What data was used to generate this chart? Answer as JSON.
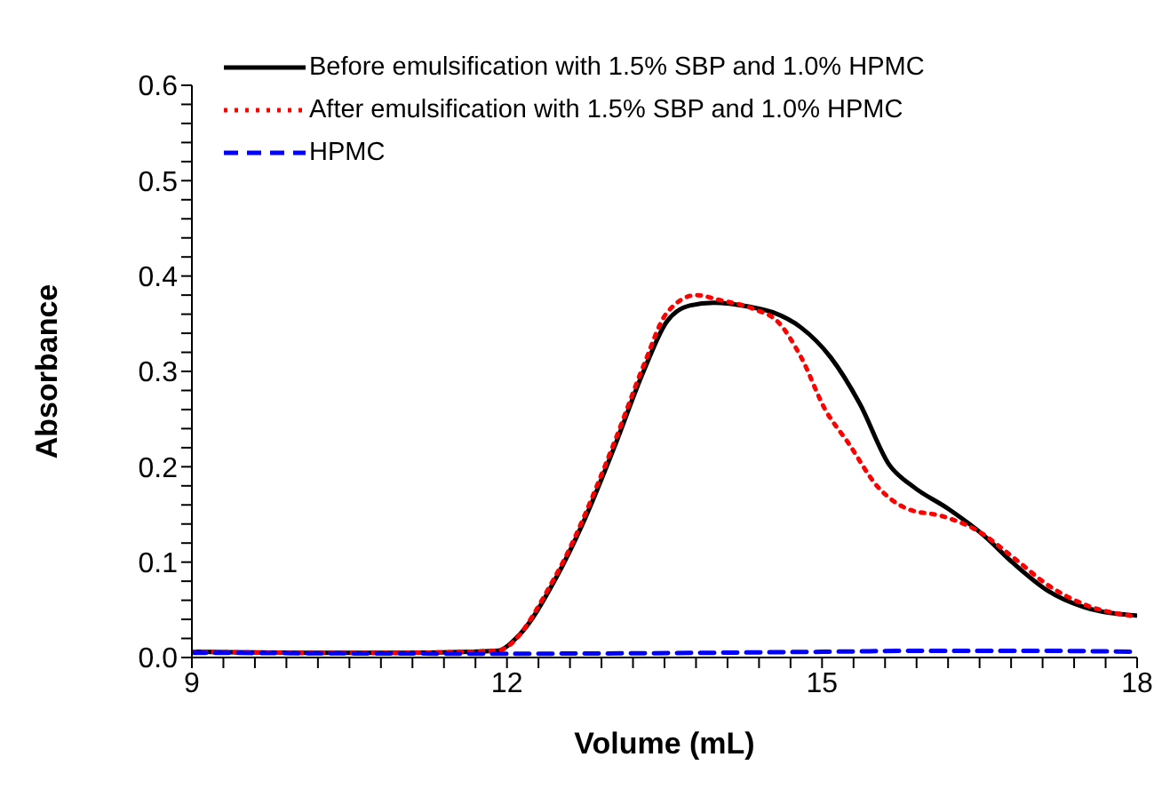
{
  "chart_data": {
    "type": "line",
    "xlabel": "Volume (mL)",
    "ylabel": "Absorbance",
    "xlim": [
      9,
      18
    ],
    "ylim": [
      0,
      0.6
    ],
    "xticks": [
      9,
      {
        "value": 9.3,
        "label": null
      },
      {
        "value": 9.6,
        "label": null
      },
      {
        "value": 9.9,
        "label": null
      },
      {
        "value": 10.2,
        "label": null
      },
      {
        "value": 10.5,
        "label": null
      },
      {
        "value": 10.8,
        "label": null
      },
      {
        "value": 11.1,
        "label": null
      },
      {
        "value": 11.4,
        "label": null
      },
      {
        "value": 11.7,
        "label": null
      },
      12,
      {
        "value": 12.3,
        "label": null
      },
      {
        "value": 12.6,
        "label": null
      },
      {
        "value": 12.9,
        "label": null
      },
      {
        "value": 13.2,
        "label": null
      },
      {
        "value": 13.5,
        "label": null
      },
      {
        "value": 13.8,
        "label": null
      },
      {
        "value": 14.1,
        "label": null
      },
      {
        "value": 14.4,
        "label": null
      },
      {
        "value": 14.7,
        "label": null
      },
      15,
      {
        "value": 15.3,
        "label": null
      },
      {
        "value": 15.6,
        "label": null
      },
      {
        "value": 15.9,
        "label": null
      },
      {
        "value": 16.2,
        "label": null
      },
      {
        "value": 16.5,
        "label": null
      },
      {
        "value": 16.8,
        "label": null
      },
      {
        "value": 17.1,
        "label": null
      },
      {
        "value": 17.4,
        "label": null
      },
      {
        "value": 17.7,
        "label": null
      },
      18
    ],
    "yticks": [
      {
        "value": 0,
        "label": "0.0"
      },
      {
        "value": 0.02,
        "label": null
      },
      {
        "value": 0.04,
        "label": null
      },
      {
        "value": 0.06,
        "label": null
      },
      {
        "value": 0.08,
        "label": null
      },
      0.1,
      {
        "value": 0.12,
        "label": null
      },
      {
        "value": 0.14,
        "label": null
      },
      {
        "value": 0.16,
        "label": null
      },
      {
        "value": 0.18,
        "label": null
      },
      0.2,
      {
        "value": 0.22,
        "label": null
      },
      {
        "value": 0.24,
        "label": null
      },
      {
        "value": 0.26,
        "label": null
      },
      {
        "value": 0.28,
        "label": null
      },
      0.3,
      {
        "value": 0.32,
        "label": null
      },
      {
        "value": 0.34,
        "label": null
      },
      {
        "value": 0.36,
        "label": null
      },
      {
        "value": 0.38,
        "label": null
      },
      0.4,
      {
        "value": 0.42,
        "label": null
      },
      {
        "value": 0.44,
        "label": null
      },
      {
        "value": 0.46,
        "label": null
      },
      {
        "value": 0.48,
        "label": null
      },
      0.5,
      {
        "value": 0.52,
        "label": null
      },
      {
        "value": 0.54,
        "label": null
      },
      {
        "value": 0.56,
        "label": null
      },
      {
        "value": 0.58,
        "label": null
      },
      0.6
    ],
    "grid": false,
    "legend": "top left",
    "marker": "none",
    "series": [
      {
        "name": "Before emulsification with 1.5% SBP and 1.0% HPMC",
        "color": "#000000",
        "line_style": "solid",
        "x": [
          9,
          10,
          11,
          11.9,
          12.12,
          12.46,
          12.74,
          13.02,
          13.3,
          13.52,
          13.74,
          13.97,
          14.3,
          14.53,
          14.8,
          15.08,
          15.36,
          15.64,
          15.87,
          16.2,
          16.54,
          16.82,
          17.15,
          17.49,
          17.99
        ],
        "values": [
          0.006,
          0.005,
          0.005,
          0.007,
          0.024,
          0.082,
          0.145,
          0.22,
          0.3,
          0.352,
          0.369,
          0.372,
          0.368,
          0.362,
          0.346,
          0.315,
          0.266,
          0.202,
          0.179,
          0.156,
          0.128,
          0.099,
          0.07,
          0.053,
          0.044
        ]
      },
      {
        "name": "After emulsification with 1.5% SBP and 1.0% HPMC",
        "color": "#ff0000",
        "line_style": "dotted",
        "x": [
          9,
          10,
          11,
          11.9,
          12.46,
          13.02,
          13.3,
          13.52,
          13.8,
          14.02,
          14.36,
          14.58,
          14.8,
          15.03,
          15.25,
          15.53,
          15.81,
          16.15,
          16.48,
          16.82,
          17.15,
          17.49,
          17.99
        ],
        "values": [
          0.006,
          0.005,
          0.005,
          0.007,
          0.085,
          0.225,
          0.306,
          0.361,
          0.38,
          0.375,
          0.365,
          0.352,
          0.315,
          0.26,
          0.225,
          0.179,
          0.156,
          0.148,
          0.133,
          0.105,
          0.076,
          0.056,
          0.043
        ]
      },
      {
        "name": "HPMC",
        "color": "#0000ff",
        "line_style": "dashed",
        "x": [
          9,
          12,
          14,
          15,
          16,
          17,
          18
        ],
        "values": [
          0.005,
          0.004,
          0.005,
          0.006,
          0.007,
          0.007,
          0.006
        ]
      }
    ]
  }
}
